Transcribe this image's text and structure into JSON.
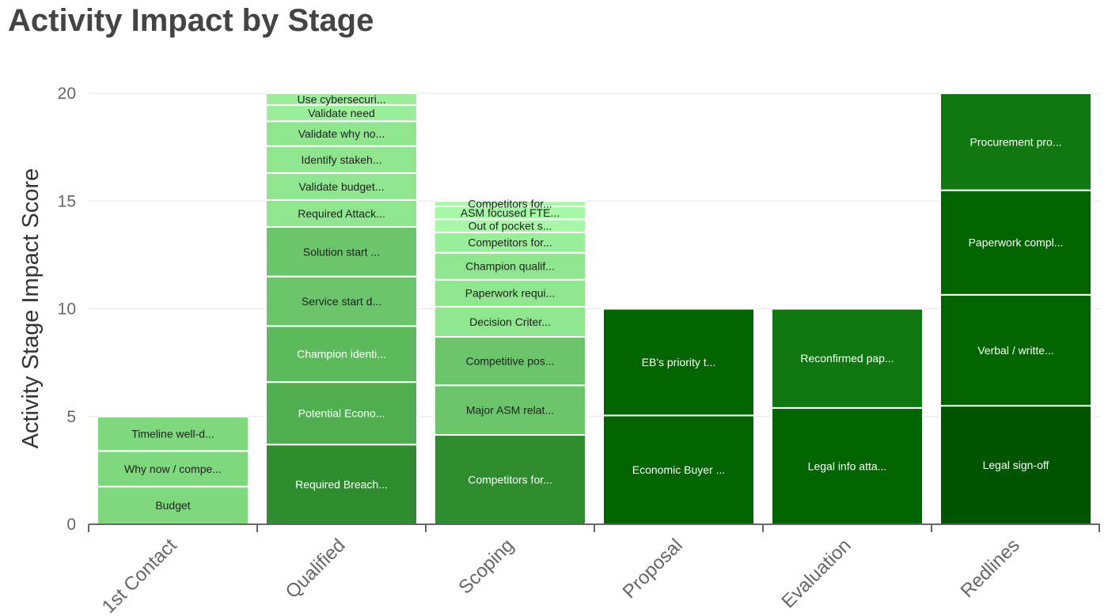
{
  "chart_data": {
    "type": "bar",
    "stacked": true,
    "title": "Activity Impact by Stage",
    "xlabel": "",
    "ylabel": "Activity Stage Impact Score",
    "ylim": [
      0,
      20
    ],
    "yticks": [
      0,
      5,
      10,
      15,
      20
    ],
    "grid": true,
    "categories": [
      "1st Contact",
      "Qualified",
      "Scoping",
      "Proposal",
      "Evaluation",
      "Redlines"
    ],
    "stacks": [
      {
        "category": "1st Contact",
        "segments": [
          {
            "label": "Budget",
            "value": 1.75,
            "color": "#7ed87e"
          },
          {
            "label": "Why now / compe...",
            "value": 1.65,
            "color": "#7ed87e"
          },
          {
            "label": "Timeline well-d...",
            "value": 1.6,
            "color": "#7ed87e"
          }
        ]
      },
      {
        "category": "Qualified",
        "segments": [
          {
            "label": "Required Breach...",
            "value": 3.7,
            "color": "#2e8b2e"
          },
          {
            "label": "Potential Econo...",
            "value": 2.9,
            "color": "#4fae4f"
          },
          {
            "label": "Champion identi...",
            "value": 2.6,
            "color": "#5cba5c"
          },
          {
            "label": "Service start d...",
            "value": 2.3,
            "color": "#6bc66b"
          },
          {
            "label": "Solution start ...",
            "value": 2.3,
            "color": "#6bc66b"
          },
          {
            "label": "Required Attack...",
            "value": 1.25,
            "color": "#8fe68f"
          },
          {
            "label": "Validate budget...",
            "value": 1.25,
            "color": "#8fe68f"
          },
          {
            "label": "Identify stakeh...",
            "value": 1.25,
            "color": "#8fe68f"
          },
          {
            "label": "Validate why no...",
            "value": 1.15,
            "color": "#8fe68f"
          },
          {
            "label": "Validate need",
            "value": 0.75,
            "color": "#9bef9b"
          },
          {
            "label": "Use cybersecuri...",
            "value": 0.55,
            "color": "#9bef9b"
          }
        ]
      },
      {
        "category": "Scoping",
        "segments": [
          {
            "label": "Competitors for...",
            "value": 4.15,
            "color": "#2e8b2e"
          },
          {
            "label": "Major ASM relat...",
            "value": 2.3,
            "color": "#6bc66b"
          },
          {
            "label": "Competitive pos...",
            "value": 2.25,
            "color": "#6bc66b"
          },
          {
            "label": "Decision Criter...",
            "value": 1.4,
            "color": "#8fe68f"
          },
          {
            "label": "Paperwork requi...",
            "value": 1.25,
            "color": "#8fe68f"
          },
          {
            "label": "Champion qualif...",
            "value": 1.25,
            "color": "#8fe68f"
          },
          {
            "label": "Competitors for...",
            "value": 0.95,
            "color": "#9bef9b"
          },
          {
            "label": "Out of pocket s...",
            "value": 0.6,
            "color": "#a6f7a6"
          },
          {
            "label": "ASM focused FTE...",
            "value": 0.6,
            "color": "#a6f7a6"
          },
          {
            "label": "Competitors for...",
            "value": 0.25,
            "color": "#a6f7a6"
          }
        ]
      },
      {
        "category": "Proposal",
        "segments": [
          {
            "label": "Economic Buyer ...",
            "value": 5.05,
            "color": "#006400"
          },
          {
            "label": "EB's priority t...",
            "value": 4.95,
            "color": "#006400"
          }
        ]
      },
      {
        "category": "Evaluation",
        "segments": [
          {
            "label": "Legal info atta...",
            "value": 5.4,
            "color": "#006400"
          },
          {
            "label": "Reconfirmed pap...",
            "value": 4.6,
            "color": "#117711"
          }
        ]
      },
      {
        "category": "Redlines",
        "segments": [
          {
            "label": "Legal sign-off",
            "value": 5.5,
            "color": "#005500"
          },
          {
            "label": "Verbal / writte...",
            "value": 5.15,
            "color": "#006400"
          },
          {
            "label": "Paperwork compl...",
            "value": 4.85,
            "color": "#006400"
          },
          {
            "label": "Procurement pro...",
            "value": 4.5,
            "color": "#117711"
          }
        ]
      }
    ]
  }
}
